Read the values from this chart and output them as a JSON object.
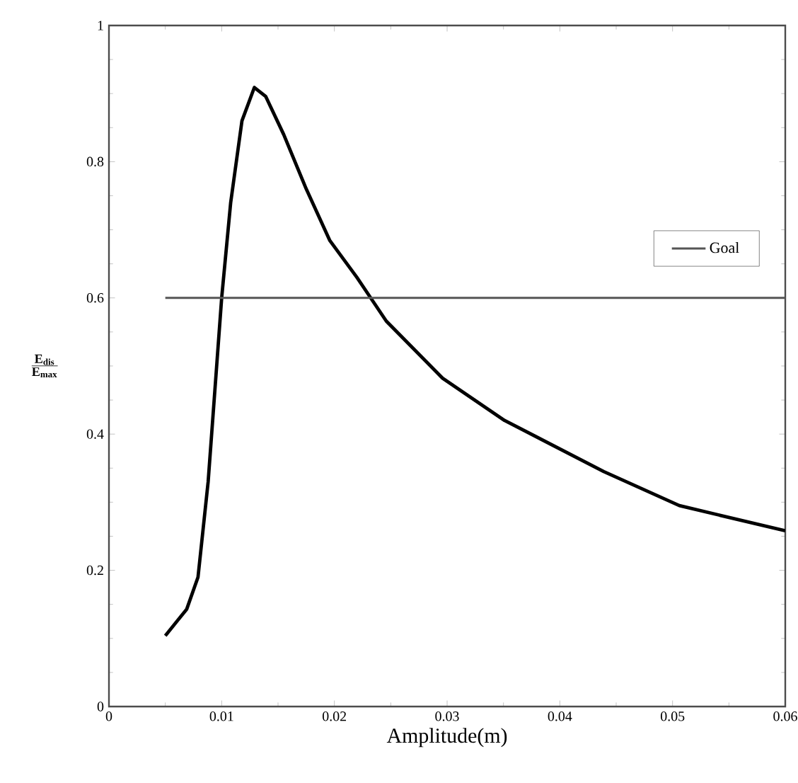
{
  "chart_data": {
    "type": "line",
    "xlabel": "Amplitude(m)",
    "ylabel": "\\frac{\\mathbf{E_{dis}}}{\\mathbf{E_{max}}}",
    "xlim": [
      0,
      0.06
    ],
    "ylim": [
      0,
      1
    ],
    "xticks": [
      0,
      0.01,
      0.02,
      0.03,
      0.04,
      0.05,
      0.06
    ],
    "yticks": [
      0,
      0.2,
      0.4,
      0.6,
      0.8,
      1
    ],
    "grid": false,
    "legend": "top right",
    "marker": "none",
    "line_style": "solid",
    "series": [
      {
        "color": "#000000",
        "x": [
          0.005,
          0.0069,
          0.0079,
          0.0088,
          0.01,
          0.0108,
          0.0118,
          0.0129,
          0.0139,
          0.0155,
          0.0175,
          0.0196,
          0.022,
          0.0246,
          0.0296,
          0.0351,
          0.0439,
          0.0506,
          0.06
        ],
        "values": [
          0.104,
          0.143,
          0.19,
          0.33,
          0.6,
          0.74,
          0.86,
          0.909,
          0.896,
          0.84,
          0.76,
          0.684,
          0.63,
          0.566,
          0.482,
          0.42,
          0.345,
          0.295,
          0.258
        ]
      },
      {
        "name": "Goal",
        "color": "#555555",
        "x": [
          0.005,
          0.06
        ],
        "values": [
          0.6,
          0.6
        ]
      }
    ]
  }
}
